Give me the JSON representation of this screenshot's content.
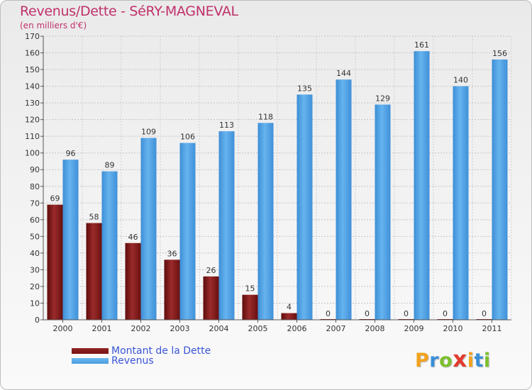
{
  "chart_data": {
    "type": "bar",
    "title": "Revenus/Dette - SéRY-MAGNEVAL",
    "subtitle": "(en milliers d'€)",
    "categories": [
      "2000",
      "2001",
      "2002",
      "2003",
      "2004",
      "2005",
      "2006",
      "2007",
      "2008",
      "2009",
      "2010",
      "2011"
    ],
    "series": [
      {
        "name": "Montant de la Dette",
        "color": "#7a1414",
        "values": [
          69,
          58,
          46,
          36,
          26,
          15,
          4,
          0,
          0,
          0,
          0,
          0
        ]
      },
      {
        "name": "Revenus",
        "color": "#4a9fe2",
        "values": [
          96,
          89,
          109,
          106,
          113,
          118,
          135,
          144,
          129,
          161,
          140,
          156
        ]
      }
    ],
    "ylim": [
      0,
      170
    ],
    "yticks": [
      0,
      10,
      20,
      30,
      40,
      50,
      60,
      70,
      80,
      90,
      100,
      110,
      120,
      130,
      140,
      150,
      160,
      170
    ],
    "grid": true,
    "legend_position": "bottom-left"
  },
  "brand": {
    "letters": [
      "P",
      "r",
      "o",
      "x",
      "i",
      "t",
      "i"
    ],
    "colors": [
      "#f2a21d",
      "#3a8fd8",
      "#7cc02e",
      "#e23b2e",
      "#f2a21d",
      "#3a8fd8",
      "#7cc02e"
    ]
  }
}
